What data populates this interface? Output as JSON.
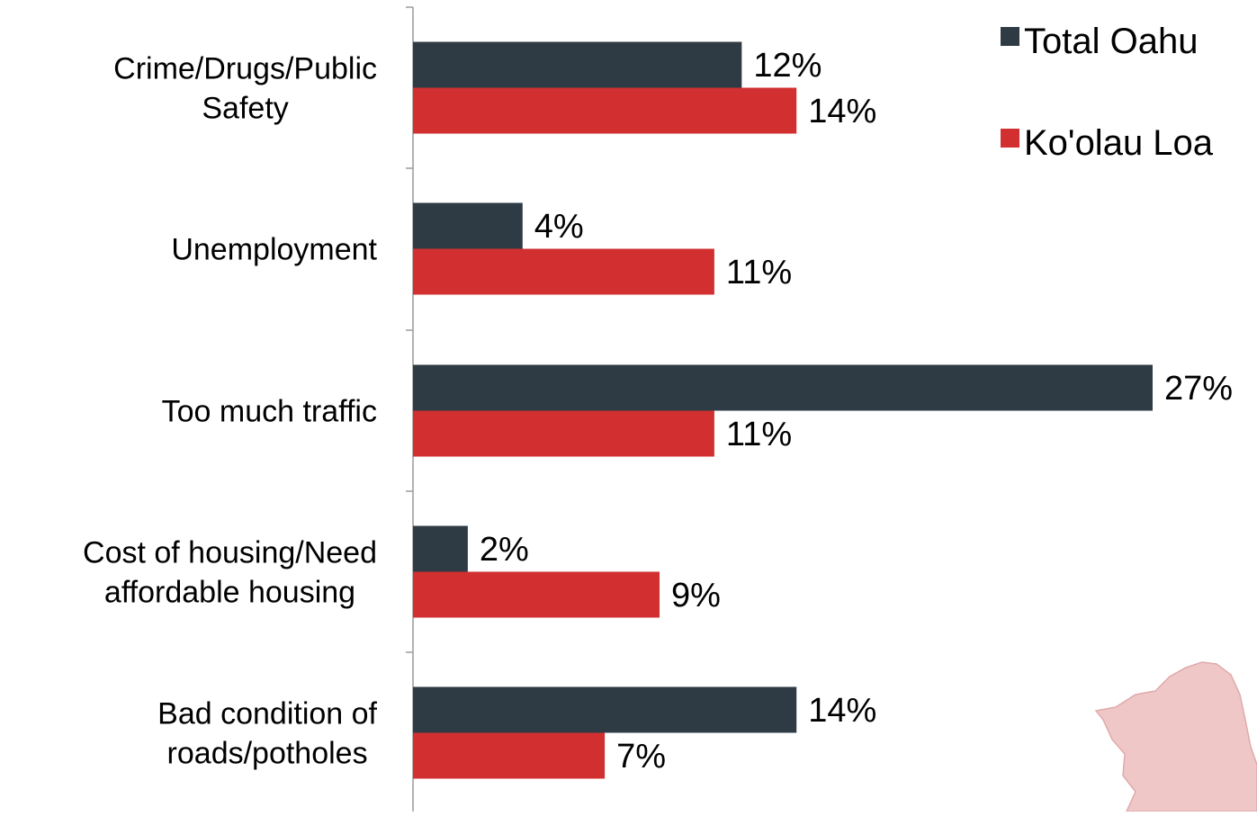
{
  "colors": {
    "total_oahu": "#2e3b45",
    "koolau_loa": "#d23030",
    "axis": "#9a9a9a",
    "text": "#000000",
    "map_fill": "#efc7c7",
    "map_stroke": "#e0aaaa"
  },
  "legend": {
    "position": "top-right",
    "items": [
      {
        "label": "Total Oahu",
        "color_key": "total_oahu"
      },
      {
        "label": "Ko'olau Loa",
        "color_key": "koolau_loa"
      }
    ]
  },
  "decoration": {
    "icon": "oahu-island-map-icon"
  },
  "chart_data": {
    "type": "bar",
    "orientation": "horizontal",
    "title": "",
    "xlabel": "",
    "ylabel": "",
    "grid": false,
    "xlim": [
      0,
      27
    ],
    "value_format": "percent",
    "categories": [
      [
        "Crime/Drugs/Public",
        "Safety"
      ],
      [
        "Unemployment"
      ],
      [
        "Too much traffic"
      ],
      [
        "Cost of housing/Need",
        "affordable housing"
      ],
      [
        "Bad condition of",
        "roads/potholes"
      ]
    ],
    "series": [
      {
        "name": "Total Oahu",
        "color_key": "total_oahu",
        "values": [
          12,
          4,
          27,
          2,
          14
        ],
        "labels": [
          "12%",
          "4%",
          "27%",
          "2%",
          "14%"
        ]
      },
      {
        "name": "Ko'olau Loa",
        "color_key": "koolau_loa",
        "values": [
          14,
          11,
          11,
          9,
          7
        ],
        "labels": [
          "14%",
          "11%",
          "11%",
          "9%",
          "7%"
        ]
      }
    ]
  }
}
